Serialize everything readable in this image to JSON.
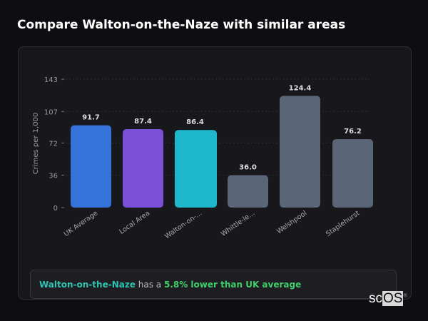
{
  "title": "Compare Walton-on-the-Naze with similar areas",
  "chart_data": {
    "type": "bar",
    "ylabel": "Crimes per 1,000",
    "ylim": [
      0,
      143
    ],
    "yticks": [
      0,
      36,
      72,
      107,
      143
    ],
    "grid": true,
    "categories": [
      "UK Average",
      "Local Area",
      "Walton-on-...",
      "Whittle-le...",
      "Welshpool",
      "Staplehurst"
    ],
    "values": [
      91.7,
      87.4,
      86.4,
      36.0,
      124.4,
      76.2
    ],
    "value_labels": [
      "91.7",
      "87.4",
      "86.4",
      "36.0",
      "124.4",
      "76.2"
    ],
    "colors": [
      "#3673d9",
      "#7b50d6",
      "#1fb7cc",
      "#5a6578",
      "#5a6578",
      "#5a6578"
    ]
  },
  "summary": {
    "area": "Walton-on-the-Naze",
    "middle": " has a ",
    "highlight": "5.8% lower than UK average"
  },
  "logo": {
    "text_a": "sc",
    "text_b": "OS",
    "mark": "®"
  }
}
